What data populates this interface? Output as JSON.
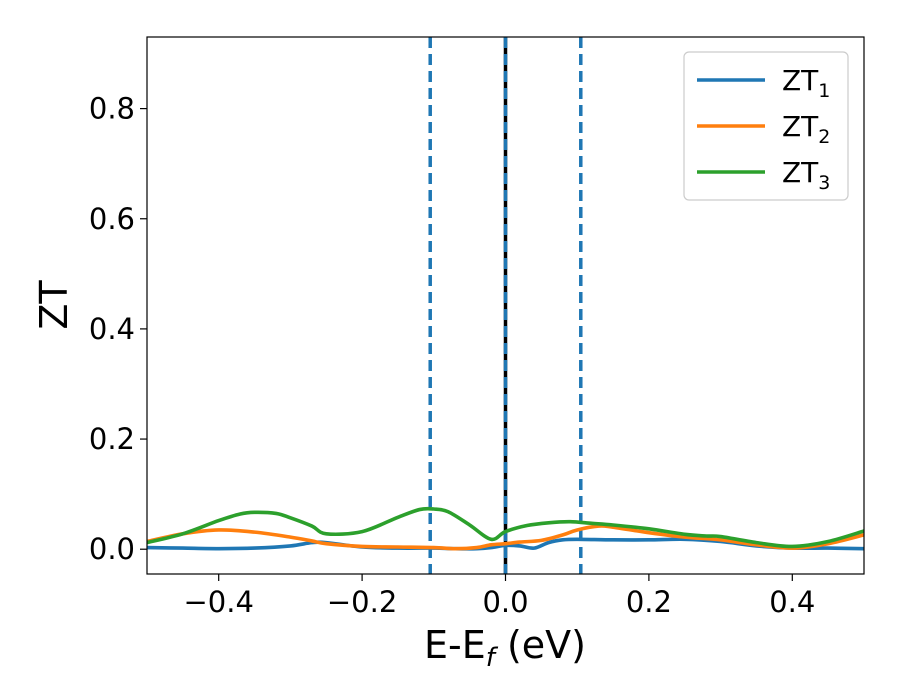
{
  "chart_data": {
    "type": "line",
    "xlabel_main": "E-E",
    "xlabel_sub": "f",
    "xlabel_tail": " (eV)",
    "ylabel": "ZT",
    "xlim": [
      -0.5,
      0.5
    ],
    "ylim": [
      -0.045,
      0.93
    ],
    "xticks": [
      -0.4,
      -0.2,
      0.0,
      0.2,
      0.4
    ],
    "xtick_labels": [
      "−0.4",
      "−0.2",
      "0.0",
      "0.2",
      "0.4"
    ],
    "yticks": [
      0.0,
      0.2,
      0.4,
      0.6,
      0.8
    ],
    "ytick_labels": [
      "0.0",
      "0.2",
      "0.4",
      "0.6",
      "0.8"
    ],
    "grid": false,
    "legend_position": "top-right",
    "vlines": [
      {
        "x": -0.105,
        "style": "dashed",
        "color": "#1f77b4"
      },
      {
        "x": 0.105,
        "style": "dashed",
        "color": "#1f77b4"
      },
      {
        "x": 0.0,
        "style": "solid",
        "color": "#000000"
      },
      {
        "x": 0.0,
        "style": "dashed",
        "color": "#1f77b4"
      }
    ],
    "series": [
      {
        "name": "ZT",
        "sub": "1",
        "color": "#1f77b4",
        "x": [
          -0.5,
          -0.45,
          -0.4,
          -0.35,
          -0.3,
          -0.27,
          -0.25,
          -0.2,
          -0.15,
          -0.1,
          -0.07,
          -0.04,
          -0.02,
          0.0,
          0.02,
          0.04,
          0.06,
          0.08,
          0.1,
          0.15,
          0.2,
          0.25,
          0.3,
          0.35,
          0.4,
          0.45,
          0.5
        ],
        "values": [
          0.003,
          0.002,
          0.001,
          0.002,
          0.006,
          0.012,
          0.012,
          0.004,
          0.002,
          0.002,
          0.001,
          0.001,
          0.003,
          0.007,
          0.006,
          0.002,
          0.012,
          0.017,
          0.018,
          0.017,
          0.017,
          0.018,
          0.014,
          0.006,
          0.002,
          0.002,
          0.001
        ]
      },
      {
        "name": "ZT",
        "sub": "2",
        "color": "#ff7f0e",
        "x": [
          -0.5,
          -0.45,
          -0.4,
          -0.35,
          -0.3,
          -0.27,
          -0.25,
          -0.2,
          -0.15,
          -0.1,
          -0.07,
          -0.04,
          -0.02,
          0.0,
          0.02,
          0.05,
          0.08,
          0.1,
          0.13,
          0.15,
          0.2,
          0.25,
          0.3,
          0.35,
          0.4,
          0.45,
          0.5
        ],
        "values": [
          0.014,
          0.028,
          0.035,
          0.031,
          0.022,
          0.015,
          0.01,
          0.005,
          0.004,
          0.003,
          0.001,
          0.003,
          0.008,
          0.01,
          0.013,
          0.016,
          0.026,
          0.035,
          0.042,
          0.04,
          0.03,
          0.022,
          0.017,
          0.008,
          0.002,
          0.01,
          0.026
        ]
      },
      {
        "name": "ZT",
        "sub": "3",
        "color": "#2ca02c",
        "x": [
          -0.5,
          -0.45,
          -0.4,
          -0.37,
          -0.35,
          -0.32,
          -0.3,
          -0.27,
          -0.25,
          -0.2,
          -0.15,
          -0.12,
          -0.1,
          -0.08,
          -0.05,
          -0.02,
          0.0,
          0.03,
          0.06,
          0.09,
          0.12,
          0.15,
          0.2,
          0.25,
          0.28,
          0.3,
          0.35,
          0.4,
          0.45,
          0.5
        ],
        "values": [
          0.012,
          0.028,
          0.052,
          0.064,
          0.067,
          0.065,
          0.057,
          0.042,
          0.028,
          0.032,
          0.058,
          0.072,
          0.073,
          0.068,
          0.044,
          0.018,
          0.032,
          0.043,
          0.048,
          0.05,
          0.047,
          0.044,
          0.037,
          0.027,
          0.024,
          0.023,
          0.012,
          0.005,
          0.014,
          0.033
        ]
      }
    ]
  }
}
